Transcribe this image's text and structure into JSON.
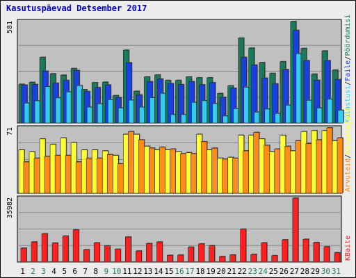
{
  "chart_data": [
    {
      "type": "bar",
      "title": "Kasutuspäevad Detsember 2017",
      "ymax_label": "581",
      "categories": [
        "1",
        "2",
        "3",
        "4",
        "5",
        "6",
        "7",
        "8",
        "9",
        "10",
        "11",
        "12",
        "13",
        "14",
        "15",
        "16",
        "17",
        "18",
        "19",
        "20",
        "21",
        "22",
        "23",
        "24",
        "25",
        "26",
        "27",
        "28",
        "29",
        "30",
        "31"
      ],
      "series": [
        {
          "name": "Pöördumisi",
          "color": "#1a7a5a",
          "values": [
            222,
            233,
            376,
            282,
            274,
            312,
            191,
            231,
            234,
            157,
            417,
            182,
            264,
            275,
            244,
            244,
            264,
            259,
            259,
            169,
            213,
            486,
            429,
            346,
            284,
            351,
            581,
            427,
            280,
            413,
            303
          ]
        },
        {
          "name": "Faile",
          "color": "#1a40e0",
          "values": [
            217,
            221,
            297,
            228,
            244,
            301,
            180,
            203,
            218,
            145,
            345,
            161,
            237,
            252,
            226,
            220,
            237,
            219,
            231,
            147,
            199,
            376,
            332,
            257,
            224,
            306,
            531,
            357,
            245,
            357,
            249
          ]
        },
        {
          "name": "Külastusi",
          "color": "#33ccf0",
          "values": [
            114,
            127,
            208,
            144,
            178,
            214,
            91,
            110,
            134,
            86,
            131,
            91,
            145,
            170,
            48,
            48,
            118,
            128,
            111,
            40,
            82,
            205,
            62,
            80,
            55,
            102,
            397,
            130,
            86,
            136,
            73
          ]
        }
      ]
    },
    {
      "type": "bar",
      "ymax_label": "71",
      "categories": [
        "1",
        "2",
        "3",
        "4",
        "5",
        "6",
        "7",
        "8",
        "9",
        "10",
        "11",
        "12",
        "13",
        "14",
        "15",
        "16",
        "17",
        "18",
        "19",
        "20",
        "21",
        "22",
        "23",
        "24",
        "25",
        "26",
        "27",
        "28",
        "29",
        "30",
        "31"
      ],
      "series": [
        {
          "name": "Külastajaid",
          "color": "#ffff33",
          "values": [
            47,
            45,
            59,
            53,
            60,
            55,
            47,
            47,
            46,
            41,
            64,
            64,
            51,
            47,
            47,
            45,
            44,
            64,
            47,
            38,
            39,
            63,
            63,
            59,
            45,
            63,
            46,
            67,
            68,
            68,
            57
          ]
        },
        {
          "name": "Arvuteid",
          "color": "#ff8c1a",
          "values": [
            34,
            38,
            40,
            41,
            41,
            34,
            38,
            38,
            42,
            32,
            67,
            58,
            49,
            50,
            48,
            43,
            43,
            56,
            49,
            37,
            38,
            46,
            66,
            52,
            48,
            51,
            57,
            54,
            58,
            71,
            60
          ]
        }
      ]
    },
    {
      "type": "bar",
      "ymax_label": "35982",
      "categories": [
        "1",
        "2",
        "3",
        "4",
        "5",
        "6",
        "7",
        "8",
        "9",
        "10",
        "11",
        "12",
        "13",
        "14",
        "15",
        "16",
        "17",
        "18",
        "19",
        "20",
        "21",
        "22",
        "23",
        "24",
        "25",
        "26",
        "27",
        "28",
        "29",
        "30",
        "31"
      ],
      "series": [
        {
          "name": "KBaite",
          "color": "#ff2020",
          "values": [
            7800,
            11300,
            15900,
            10700,
            14600,
            18100,
            6900,
            10800,
            9100,
            7200,
            14100,
            6200,
            10400,
            11300,
            3800,
            3900,
            8400,
            10200,
            9200,
            3100,
            4000,
            18500,
            4300,
            10800,
            3600,
            12500,
            35982,
            12800,
            11000,
            8600,
            5200
          ]
        }
      ]
    }
  ],
  "x_label_colors": {
    "weekday": "#000000",
    "weekend": "#1a7a5a"
  },
  "weekend_days": [
    "2",
    "3",
    "9",
    "10",
    "16",
    "17",
    "23",
    "24",
    "30",
    "31"
  ],
  "right_axis_separator": "/"
}
